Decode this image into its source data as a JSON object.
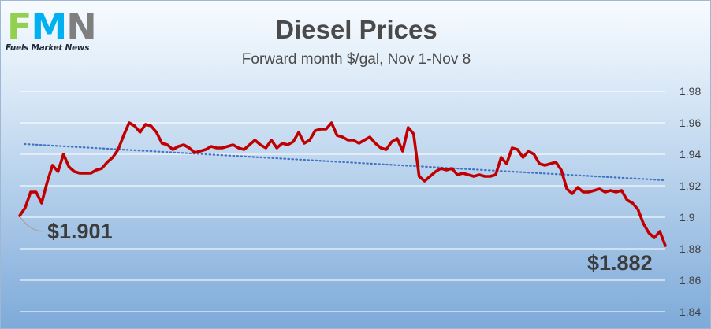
{
  "logo": {
    "letters": [
      "F",
      "M",
      "N"
    ],
    "letter_colors": [
      "#92d050",
      "#00b0f0",
      "#7f7f7f"
    ],
    "tagline": "Fuels Market News"
  },
  "chart_data": {
    "type": "line",
    "title": "Diesel Prices",
    "subtitle": "Forward month $/gal, Nov 1-Nov 8",
    "xlabel": "",
    "ylabel": "",
    "ylim": [
      1.84,
      1.98
    ],
    "yticks": [
      "1.84",
      "1.86",
      "1.88",
      "1.9",
      "1.92",
      "1.94",
      "1.96",
      "1.98"
    ],
    "grid": true,
    "x_axis_labels": false,
    "series": [
      {
        "color": "#c00000",
        "values": [
          1.901,
          1.906,
          1.916,
          1.916,
          1.909,
          1.922,
          1.933,
          1.929,
          1.94,
          1.932,
          1.929,
          1.928,
          1.928,
          1.928,
          1.93,
          1.931,
          1.935,
          1.938,
          1.943,
          1.952,
          1.96,
          1.958,
          1.954,
          1.959,
          1.958,
          1.954,
          1.947,
          1.946,
          1.943,
          1.945,
          1.946,
          1.944,
          1.941,
          1.942,
          1.943,
          1.945,
          1.944,
          1.944,
          1.945,
          1.946,
          1.944,
          1.943,
          1.946,
          1.949,
          1.946,
          1.944,
          1.949,
          1.944,
          1.947,
          1.946,
          1.948,
          1.954,
          1.947,
          1.949,
          1.955,
          1.956,
          1.956,
          1.96,
          1.952,
          1.951,
          1.949,
          1.949,
          1.947,
          1.949,
          1.951,
          1.947,
          1.944,
          1.943,
          1.948,
          1.95,
          1.942,
          1.957,
          1.953,
          1.926,
          1.923,
          1.926,
          1.929,
          1.931,
          1.93,
          1.931,
          1.927,
          1.928,
          1.927,
          1.926,
          1.927,
          1.926,
          1.926,
          1.927,
          1.938,
          1.934,
          1.944,
          1.943,
          1.938,
          1.942,
          1.94,
          1.934,
          1.933,
          1.934,
          1.935,
          1.93,
          1.918,
          1.915,
          1.919,
          1.916,
          1.916,
          1.917,
          1.918,
          1.916,
          1.917,
          1.916,
          1.917,
          1.911,
          1.909,
          1.905,
          1.896,
          1.89,
          1.887,
          1.891,
          1.882
        ]
      },
      {
        "color": "#4472c4",
        "style": "dotted",
        "values": [
          1.9465,
          1.9235
        ]
      }
    ],
    "annotations": [
      {
        "text": "$1.901",
        "value": 1.901,
        "point": "first"
      },
      {
        "text": "$1.882",
        "value": 1.882,
        "point": "last"
      }
    ]
  }
}
